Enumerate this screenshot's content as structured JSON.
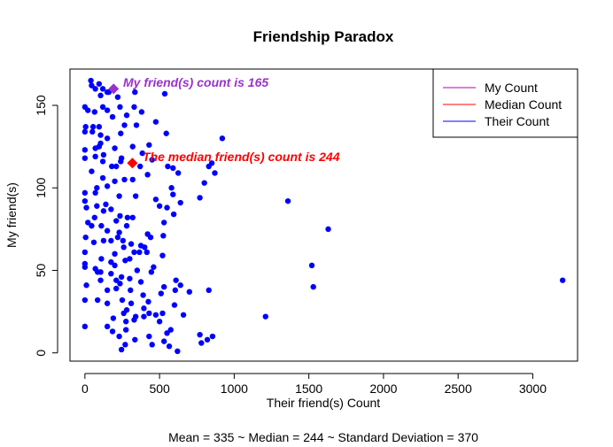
{
  "chart_data": {
    "type": "scatter",
    "title": "Friendship Paradox",
    "xlabel": "Their  friend(s)  Count",
    "ylabel": "My friend(s)",
    "xlim": [
      -100,
      3300
    ],
    "ylim": [
      -5,
      172
    ],
    "x_ticks": [
      0,
      500,
      1000,
      1500,
      2000,
      2500,
      3000
    ],
    "y_ticks": [
      0,
      50,
      100,
      150
    ],
    "legend": {
      "placement": "top-right",
      "items": [
        {
          "label": "My Count",
          "color": "#b000b0"
        },
        {
          "label": "Median Count",
          "color": "#ff0000"
        },
        {
          "label": "Their Count",
          "color": "#0000ff"
        }
      ]
    },
    "annotations": [
      {
        "text": "My  friend(s)  count is 165",
        "color": "#9932cc"
      },
      {
        "text": "The median  friend(s)  count is 244",
        "color": "#ff0000"
      }
    ],
    "stats_line": "Mean =  335 ~ Median =  244 ~ Standard Deviation =  370",
    "my_point": {
      "x": 192,
      "y": 160,
      "color": "#9932cc"
    },
    "median_point": {
      "x": 318,
      "y": 115,
      "color": "#ff0000"
    },
    "series": [
      {
        "name": "Their Count",
        "color": "#0000ff",
        "points": [
          [
            40,
            165
          ],
          [
            45,
            162
          ],
          [
            95,
            163
          ],
          [
            70,
            160
          ],
          [
            120,
            160
          ],
          [
            160,
            158
          ],
          [
            105,
            156
          ],
          [
            150,
            158
          ],
          [
            220,
            155
          ],
          [
            335,
            158
          ],
          [
            535,
            157
          ],
          [
            0,
            149
          ],
          [
            20,
            147
          ],
          [
            65,
            146
          ],
          [
            120,
            149
          ],
          [
            150,
            147
          ],
          [
            235,
            149
          ],
          [
            330,
            149
          ],
          [
            380,
            146
          ],
          [
            5,
            137
          ],
          [
            55,
            137
          ],
          [
            95,
            137
          ],
          [
            185,
            143
          ],
          [
            265,
            138
          ],
          [
            280,
            144
          ],
          [
            345,
            138
          ],
          [
            475,
            140
          ],
          [
            0,
            134
          ],
          [
            50,
            134
          ],
          [
            105,
            132
          ],
          [
            150,
            130
          ],
          [
            240,
            133
          ],
          [
            545,
            133
          ],
          [
            105,
            127
          ],
          [
            95,
            125
          ],
          [
            320,
            125
          ],
          [
            430,
            126
          ],
          [
            920,
            130
          ],
          [
            0,
            123
          ],
          [
            70,
            124
          ],
          [
            125,
            120
          ],
          [
            200,
            124
          ],
          [
            245,
            118
          ],
          [
            385,
            121
          ],
          [
            555,
            113
          ],
          [
            0,
            118
          ],
          [
            70,
            119
          ],
          [
            120,
            116
          ],
          [
            180,
            113
          ],
          [
            210,
            113
          ],
          [
            265,
            105
          ],
          [
            240,
            116
          ],
          [
            370,
            113
          ],
          [
            450,
            117
          ],
          [
            590,
            112
          ],
          [
            625,
            109
          ],
          [
            870,
            109
          ],
          [
            45,
            110
          ],
          [
            120,
            106
          ],
          [
            420,
            108
          ],
          [
            580,
            100
          ],
          [
            200,
            104
          ],
          [
            320,
            105
          ],
          [
            800,
            103
          ],
          [
            830,
            113
          ],
          [
            850,
            115
          ],
          [
            80,
            100
          ],
          [
            0,
            97
          ],
          [
            70,
            97
          ],
          [
            150,
            101
          ],
          [
            230,
            95
          ],
          [
            340,
            95
          ],
          [
            475,
            93
          ],
          [
            590,
            96
          ],
          [
            0,
            92
          ],
          [
            140,
            90
          ],
          [
            500,
            89
          ],
          [
            550,
            88
          ],
          [
            1360,
            92
          ],
          [
            10,
            88
          ],
          [
            80,
            89
          ],
          [
            125,
            86
          ],
          [
            175,
            87
          ],
          [
            235,
            83
          ],
          [
            285,
            82
          ],
          [
            595,
            84
          ],
          [
            640,
            91
          ],
          [
            65,
            82
          ],
          [
            210,
            80
          ],
          [
            320,
            82
          ],
          [
            770,
            94
          ],
          [
            20,
            79
          ],
          [
            45,
            77
          ],
          [
            110,
            77
          ],
          [
            150,
            74
          ],
          [
            230,
            73
          ],
          [
            280,
            77
          ],
          [
            420,
            72
          ],
          [
            530,
            79
          ],
          [
            220,
            70
          ],
          [
            255,
            68
          ],
          [
            310,
            66
          ],
          [
            1630,
            75
          ],
          [
            5,
            70
          ],
          [
            60,
            67
          ],
          [
            125,
            68
          ],
          [
            175,
            68
          ],
          [
            260,
            64
          ],
          [
            330,
            61
          ],
          [
            400,
            64
          ],
          [
            440,
            70
          ],
          [
            525,
            71
          ],
          [
            365,
            61
          ],
          [
            375,
            65
          ],
          [
            0,
            61
          ],
          [
            110,
            57
          ],
          [
            175,
            55
          ],
          [
            200,
            60
          ],
          [
            300,
            57
          ],
          [
            415,
            61
          ],
          [
            520,
            59
          ],
          [
            0,
            54
          ],
          [
            70,
            51
          ],
          [
            105,
            49
          ],
          [
            200,
            53
          ],
          [
            270,
            56
          ],
          [
            350,
            50
          ],
          [
            460,
            52
          ],
          [
            0,
            52
          ],
          [
            85,
            49
          ],
          [
            175,
            48
          ],
          [
            210,
            44
          ],
          [
            235,
            42
          ],
          [
            245,
            46
          ],
          [
            300,
            45
          ],
          [
            445,
            49
          ],
          [
            610,
            44
          ],
          [
            1520,
            53
          ],
          [
            10,
            41
          ],
          [
            105,
            44
          ],
          [
            150,
            38
          ],
          [
            210,
            39
          ],
          [
            305,
            38
          ],
          [
            375,
            43
          ],
          [
            530,
            40
          ],
          [
            640,
            41
          ],
          [
            830,
            38
          ],
          [
            1530,
            40
          ],
          [
            3200,
            44
          ],
          [
            0,
            32
          ],
          [
            85,
            32
          ],
          [
            150,
            30
          ],
          [
            250,
            32
          ],
          [
            310,
            30
          ],
          [
            390,
            35
          ],
          [
            425,
            31
          ],
          [
            510,
            36
          ],
          [
            605,
            38
          ],
          [
            700,
            37
          ],
          [
            190,
            21
          ],
          [
            260,
            24
          ],
          [
            280,
            26
          ],
          [
            340,
            22
          ],
          [
            395,
            27
          ],
          [
            475,
            23
          ],
          [
            520,
            24
          ],
          [
            600,
            29
          ],
          [
            660,
            23
          ],
          [
            1210,
            22
          ],
          [
            0,
            16
          ],
          [
            150,
            16
          ],
          [
            185,
            13
          ],
          [
            275,
            19
          ],
          [
            330,
            20
          ],
          [
            395,
            22
          ],
          [
            430,
            24
          ],
          [
            500,
            19
          ],
          [
            770,
            11
          ],
          [
            820,
            8
          ],
          [
            855,
            10
          ],
          [
            230,
            10
          ],
          [
            275,
            14
          ],
          [
            335,
            8
          ],
          [
            430,
            10
          ],
          [
            550,
            12
          ],
          [
            575,
            14
          ],
          [
            780,
            6
          ],
          [
            270,
            5
          ],
          [
            245,
            2
          ],
          [
            530,
            7
          ],
          [
            565,
            4
          ],
          [
            620,
            1
          ],
          [
            450,
            5
          ]
        ]
      }
    ]
  }
}
